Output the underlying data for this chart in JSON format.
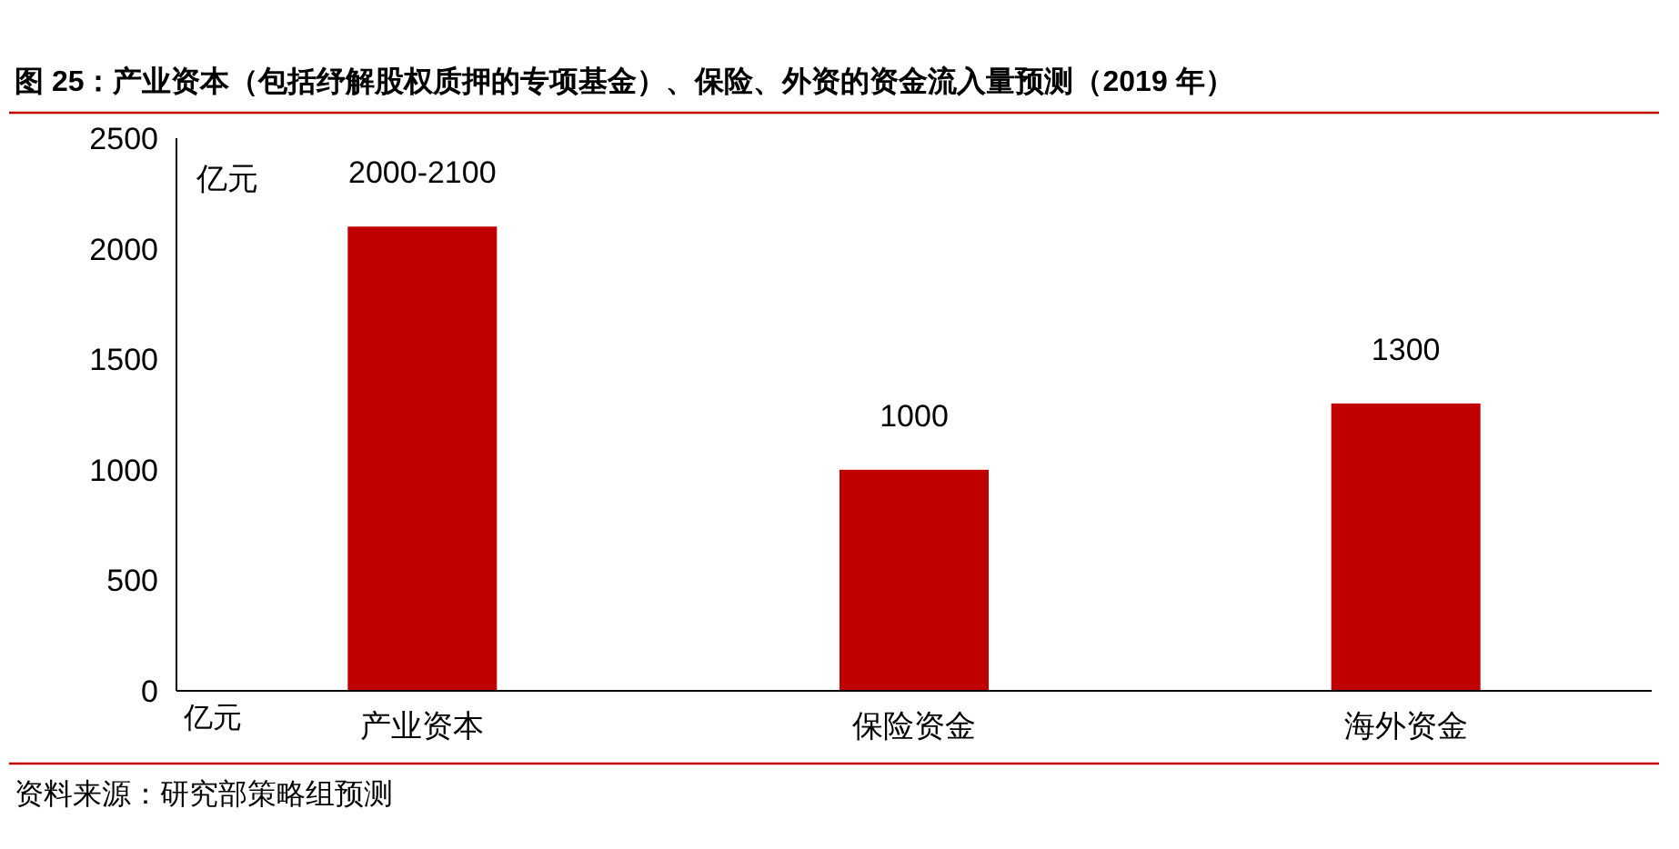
{
  "chart_data": {
    "type": "bar",
    "title": "图 25：产业资本（包括纾解股权质押的专项基金）、保险、外资的资金流入量预测（2019 年）",
    "ylabel": "亿元",
    "categories": [
      "产业资本",
      "保险资金",
      "海外资金"
    ],
    "values": [
      2100,
      1000,
      1300
    ],
    "value_labels": [
      "2000-2100",
      "1000",
      "1300"
    ],
    "color": "#c00000",
    "ylim": [
      0,
      2500
    ],
    "yticks": [
      0,
      500,
      1000,
      1500,
      2000,
      2500
    ],
    "annotations": [
      "亿元",
      "资料来源：研究部策略组预测"
    ]
  }
}
